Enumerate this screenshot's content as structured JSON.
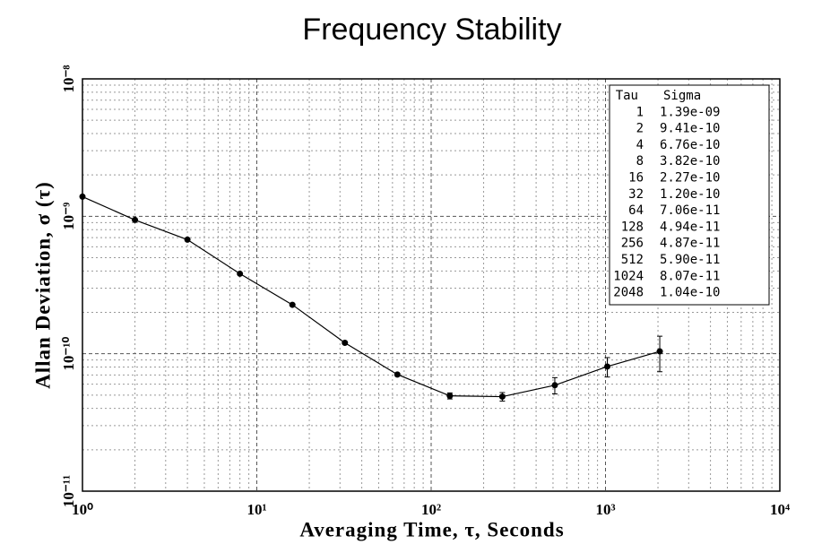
{
  "chart_data": {
    "type": "line",
    "title": "Frequency Stability",
    "x_label": "Averaging Time, τ, Seconds",
    "y_label": "Allan Deviation, σ (τ)",
    "x": [
      1,
      2,
      4,
      8,
      16,
      32,
      64,
      128,
      256,
      512,
      1024,
      2048
    ],
    "series": [
      {
        "name": "Sigma",
        "color": "#000000",
        "values": [
          1.39e-09,
          9.41e-10,
          6.76e-10,
          3.82e-10,
          2.27e-10,
          1.2e-10,
          7.06e-11,
          4.94e-11,
          4.87e-11,
          5.9e-11,
          8.07e-11,
          1.04e-10
        ],
        "value_labels": [
          "1.39e-09",
          "9.41e-10",
          "6.76e-10",
          "3.82e-10",
          "2.27e-10",
          "1.20e-10",
          "7.06e-11",
          "4.94e-11",
          "4.87e-11",
          "5.90e-11",
          "8.07e-11",
          "1.04e-10"
        ],
        "errors": [
          1e-11,
          6e-12,
          4e-12,
          2e-12,
          1.5e-12,
          1e-12,
          1.5e-12,
          2.5e-12,
          3.5e-12,
          8e-12,
          1.3e-11,
          3e-11
        ]
      }
    ],
    "table_headers": [
      "Tau",
      "Sigma"
    ],
    "xlim": [
      1,
      10000
    ],
    "ylim": [
      1e-11,
      1e-08
    ],
    "log_x": true,
    "log_y": true,
    "grid": true,
    "xticks": [
      {
        "value": 1,
        "label": "10⁰"
      },
      {
        "value": 10,
        "label": "10¹"
      },
      {
        "value": 100,
        "label": "10²"
      },
      {
        "value": 1000,
        "label": "10³"
      },
      {
        "value": 10000,
        "label": "10⁴"
      }
    ],
    "yticks": [
      {
        "value": 1e-11,
        "label": "10⁻¹¹"
      },
      {
        "value": 1e-10,
        "label": "10⁻¹⁰"
      },
      {
        "value": 1e-09,
        "label": "10⁻⁹"
      },
      {
        "value": 1e-08,
        "label": "10⁻⁸"
      }
    ]
  }
}
